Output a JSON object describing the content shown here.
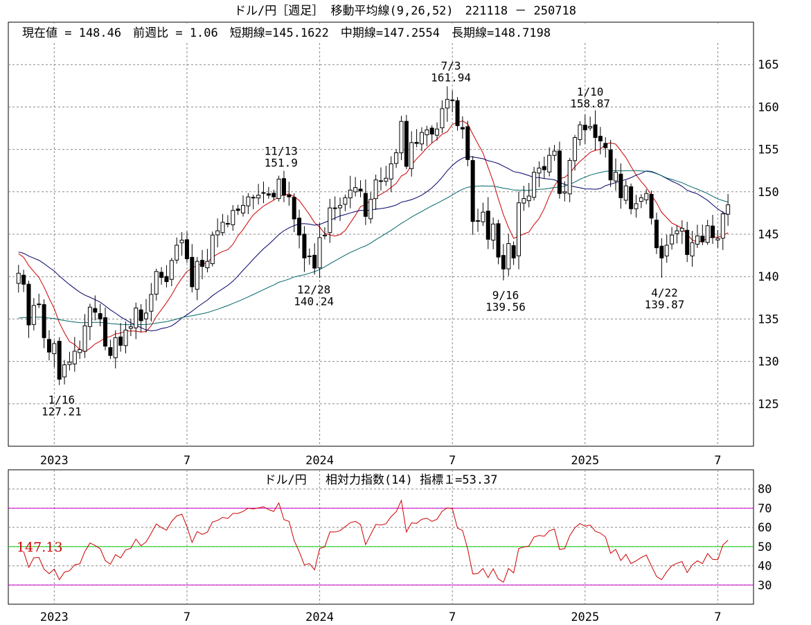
{
  "main": {
    "title": "ドル/円［週足］ 移動平均線(9,26,52)　221118 － 250718",
    "info": "現在値 = 148.46　前週比 = 1.06　短期線=145.1622　中期線=147.2554　長期線=148.7198",
    "ylim": [
      120,
      170
    ],
    "yticks": [
      125,
      130,
      135,
      140,
      145,
      150,
      155,
      160,
      165
    ],
    "xticks": [
      {
        "date": "2023-01-06",
        "label": "2023"
      },
      {
        "date": "2023-07-07",
        "label": "7"
      },
      {
        "date": "2024-01-05",
        "label": "2024"
      },
      {
        "date": "2024-07-05",
        "label": "7"
      },
      {
        "date": "2025-01-03",
        "label": "2025"
      },
      {
        "date": "2025-07-04",
        "label": "7"
      }
    ],
    "annotations": [
      {
        "date": "2023-01-16",
        "value": 127.21,
        "label_top": "1/16",
        "label_bottom": "127.21",
        "pos": "below"
      },
      {
        "date": "2023-11-13",
        "value": 151.9,
        "label_top": "11/13",
        "label_bottom": "151.9",
        "pos": "above"
      },
      {
        "date": "2023-12-28",
        "value": 140.24,
        "label_top": "12/28",
        "label_bottom": "140.24",
        "pos": "below"
      },
      {
        "date": "2024-07-03",
        "value": 161.94,
        "label_top": "7/3",
        "label_bottom": "161.94",
        "pos": "above"
      },
      {
        "date": "2024-09-16",
        "value": 139.56,
        "label_top": "9/16",
        "label_bottom": "139.56",
        "pos": "below"
      },
      {
        "date": "2025-01-10",
        "value": 158.87,
        "label_top": "1/10",
        "label_bottom": "158.87",
        "pos": "above"
      },
      {
        "date": "2025-04-22",
        "value": 139.87,
        "label_top": "4/22",
        "label_bottom": "139.87",
        "pos": "below"
      }
    ]
  },
  "chart_data": {
    "type": "candlestick",
    "start_date": "2022-11-18",
    "end_date": "2025-07-18",
    "colors": {
      "up": "#ffffff",
      "down": "#000000",
      "short_ma": "#cc0000",
      "mid_ma": "#000066",
      "long_ma": "#006666",
      "rsi": "#cc0000"
    },
    "series": [
      {
        "name": "短期線",
        "value": 145.1622
      },
      {
        "name": "中期線",
        "value": 147.2554
      },
      {
        "name": "長期線",
        "value": 148.7198
      }
    ],
    "close_anchors": [
      [
        "2022-11-18",
        140.4
      ],
      [
        "2022-11-25",
        139.1
      ],
      [
        "2022-12-02",
        134.3
      ],
      [
        "2022-12-09",
        136.6
      ],
      [
        "2022-12-16",
        136.7
      ],
      [
        "2022-12-23",
        132.8
      ],
      [
        "2022-12-30",
        131.1
      ],
      [
        "2023-01-06",
        132.1
      ],
      [
        "2023-01-13",
        127.9
      ],
      [
        "2023-01-20",
        129.6
      ],
      [
        "2023-01-27",
        129.9
      ],
      [
        "2023-02-03",
        131.2
      ],
      [
        "2023-02-10",
        131.4
      ],
      [
        "2023-02-17",
        134.2
      ],
      [
        "2023-02-24",
        136.4
      ],
      [
        "2023-03-03",
        135.8
      ],
      [
        "2023-03-10",
        135.0
      ],
      [
        "2023-03-17",
        131.8
      ],
      [
        "2023-03-24",
        130.7
      ],
      [
        "2023-03-31",
        132.8
      ],
      [
        "2023-04-07",
        131.9
      ],
      [
        "2023-04-14",
        133.7
      ],
      [
        "2023-04-21",
        134.1
      ],
      [
        "2023-04-28",
        136.3
      ],
      [
        "2023-05-05",
        134.8
      ],
      [
        "2023-05-12",
        135.7
      ],
      [
        "2023-05-19",
        137.9
      ],
      [
        "2023-05-26",
        140.6
      ],
      [
        "2023-06-02",
        139.9
      ],
      [
        "2023-06-09",
        139.4
      ],
      [
        "2023-06-16",
        141.9
      ],
      [
        "2023-06-23",
        143.7
      ],
      [
        "2023-06-30",
        144.3
      ],
      [
        "2023-07-07",
        142.1
      ],
      [
        "2023-07-14",
        138.8
      ],
      [
        "2023-07-21",
        141.8
      ],
      [
        "2023-07-28",
        141.2
      ],
      [
        "2023-08-04",
        141.8
      ],
      [
        "2023-08-11",
        144.9
      ],
      [
        "2023-08-18",
        145.4
      ],
      [
        "2023-08-25",
        146.4
      ],
      [
        "2023-09-01",
        146.2
      ],
      [
        "2023-09-08",
        147.8
      ],
      [
        "2023-09-15",
        147.8
      ],
      [
        "2023-09-22",
        148.4
      ],
      [
        "2023-09-29",
        149.4
      ],
      [
        "2023-10-06",
        149.3
      ],
      [
        "2023-10-13",
        149.6
      ],
      [
        "2023-10-20",
        149.9
      ],
      [
        "2023-10-27",
        149.6
      ],
      [
        "2023-11-03",
        149.4
      ],
      [
        "2023-11-10",
        151.5
      ],
      [
        "2023-11-17",
        149.6
      ],
      [
        "2023-11-24",
        149.4
      ],
      [
        "2023-12-01",
        146.8
      ],
      [
        "2023-12-08",
        144.9
      ],
      [
        "2023-12-15",
        142.2
      ],
      [
        "2023-12-22",
        142.4
      ],
      [
        "2023-12-29",
        141.0
      ],
      [
        "2024-01-05",
        144.6
      ],
      [
        "2024-01-12",
        144.9
      ],
      [
        "2024-01-19",
        148.1
      ],
      [
        "2024-01-26",
        148.1
      ],
      [
        "2024-02-02",
        148.4
      ],
      [
        "2024-02-09",
        149.3
      ],
      [
        "2024-02-16",
        150.2
      ],
      [
        "2024-02-23",
        150.5
      ],
      [
        "2024-03-01",
        150.1
      ],
      [
        "2024-03-08",
        147.1
      ],
      [
        "2024-03-15",
        149.1
      ],
      [
        "2024-03-22",
        151.4
      ],
      [
        "2024-03-29",
        151.3
      ],
      [
        "2024-04-05",
        151.6
      ],
      [
        "2024-04-12",
        153.3
      ],
      [
        "2024-04-19",
        154.6
      ],
      [
        "2024-04-26",
        158.3
      ],
      [
        "2024-05-03",
        153.0
      ],
      [
        "2024-05-10",
        155.8
      ],
      [
        "2024-05-17",
        155.7
      ],
      [
        "2024-05-24",
        157.0
      ],
      [
        "2024-05-31",
        157.3
      ],
      [
        "2024-06-07",
        156.8
      ],
      [
        "2024-06-14",
        157.4
      ],
      [
        "2024-06-21",
        159.8
      ],
      [
        "2024-06-28",
        160.9
      ],
      [
        "2024-07-05",
        160.8
      ],
      [
        "2024-07-12",
        157.8
      ],
      [
        "2024-07-19",
        157.4
      ],
      [
        "2024-07-26",
        153.8
      ],
      [
        "2024-08-02",
        146.5
      ],
      [
        "2024-08-09",
        146.6
      ],
      [
        "2024-08-16",
        147.6
      ],
      [
        "2024-08-23",
        144.4
      ],
      [
        "2024-08-30",
        146.2
      ],
      [
        "2024-09-06",
        142.3
      ],
      [
        "2024-09-13",
        140.9
      ],
      [
        "2024-09-20",
        143.9
      ],
      [
        "2024-09-27",
        142.2
      ],
      [
        "2024-10-04",
        148.7
      ],
      [
        "2024-10-11",
        149.2
      ],
      [
        "2024-10-18",
        149.5
      ],
      [
        "2024-10-25",
        152.3
      ],
      [
        "2024-11-01",
        152.8
      ],
      [
        "2024-11-08",
        152.6
      ],
      [
        "2024-11-15",
        154.3
      ],
      [
        "2024-11-22",
        154.8
      ],
      [
        "2024-11-29",
        149.8
      ],
      [
        "2024-12-06",
        150.0
      ],
      [
        "2024-12-13",
        153.7
      ],
      [
        "2024-12-20",
        156.4
      ],
      [
        "2024-12-27",
        157.9
      ],
      [
        "2025-01-03",
        157.3
      ],
      [
        "2025-01-10",
        157.7
      ],
      [
        "2025-01-17",
        156.4
      ],
      [
        "2025-01-24",
        156.0
      ],
      [
        "2025-01-31",
        155.2
      ],
      [
        "2025-02-07",
        151.4
      ],
      [
        "2025-02-14",
        152.3
      ],
      [
        "2025-02-21",
        149.3
      ],
      [
        "2025-02-28",
        150.7
      ],
      [
        "2025-03-07",
        148.0
      ],
      [
        "2025-03-14",
        148.6
      ],
      [
        "2025-03-21",
        149.3
      ],
      [
        "2025-03-28",
        149.8
      ],
      [
        "2025-04-04",
        146.9
      ],
      [
        "2025-04-11",
        143.4
      ],
      [
        "2025-04-18",
        142.2
      ],
      [
        "2025-04-25",
        143.7
      ],
      [
        "2025-05-02",
        144.9
      ],
      [
        "2025-05-09",
        145.4
      ],
      [
        "2025-05-16",
        145.7
      ],
      [
        "2025-05-23",
        142.6
      ],
      [
        "2025-05-30",
        144.0
      ],
      [
        "2025-06-06",
        144.8
      ],
      [
        "2025-06-13",
        144.1
      ],
      [
        "2025-06-20",
        146.0
      ],
      [
        "2025-06-27",
        144.6
      ],
      [
        "2025-07-04",
        144.5
      ],
      [
        "2025-07-11",
        147.4
      ],
      [
        "2025-07-18",
        148.46
      ]
    ]
  },
  "rsi": {
    "title": "ドル/円　 相対力指数(14) 指標１=53.37",
    "price_label": "147.13",
    "ylim": [
      20,
      90
    ],
    "yticks": [
      30,
      40,
      50,
      60,
      70,
      80
    ],
    "levels": [
      {
        "value": 70,
        "color": "#cc00cc"
      },
      {
        "value": 50,
        "color": "#00cc00"
      },
      {
        "value": 30,
        "color": "#cc00cc"
      }
    ],
    "xticks": [
      {
        "date": "2023-01-06",
        "label": "2023"
      },
      {
        "date": "2023-07-07",
        "label": "7"
      },
      {
        "date": "2024-01-05",
        "label": "2024"
      },
      {
        "date": "2024-07-05",
        "label": "7"
      },
      {
        "date": "2025-01-03",
        "label": "2025"
      },
      {
        "date": "2025-07-04",
        "label": "7"
      }
    ]
  }
}
